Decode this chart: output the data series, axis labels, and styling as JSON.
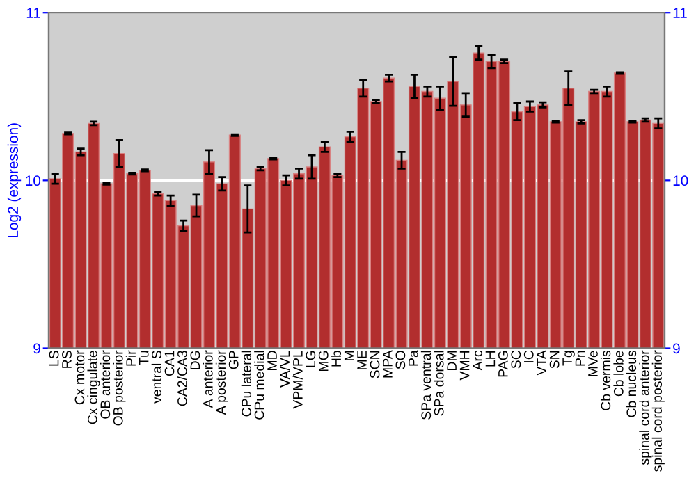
{
  "chart_data": {
    "type": "bar",
    "ylabel": "Log2 (expression)",
    "categories": [
      "LS",
      "RS",
      "Cx motor",
      "Cx cingulate",
      "OB anterior",
      "OB posterior",
      "Pir",
      "Tu",
      "ventral S",
      "CA1",
      "CA2/CA3",
      "DG",
      "A anterior",
      "A posterior",
      "GP",
      "CPu lateral",
      "CPu medial",
      "MD",
      "VA/VL",
      "VPM/VPL",
      "LG",
      "MG",
      "Hb",
      "M",
      "ME",
      "SCN",
      "MPA",
      "SO",
      "Pa",
      "SPa ventral",
      "SPa dorsal",
      "DM",
      "VMH",
      "Arc",
      "LH",
      "PAG",
      "SC",
      "IC",
      "VTA",
      "SN",
      "Tg",
      "Pn",
      "MVe",
      "Cb vermis",
      "Cb lobe",
      "Cb nucleus",
      "spinal cord anterior",
      "spinal cord posterior"
    ],
    "series": [
      {
        "color": "#b22e2e",
        "values": [
          10.01,
          10.28,
          10.17,
          10.34,
          9.98,
          10.16,
          10.04,
          10.06,
          9.92,
          9.88,
          9.73,
          9.85,
          10.11,
          9.98,
          10.27,
          9.83,
          10.07,
          10.13,
          10.0,
          10.04,
          10.08,
          10.2,
          10.03,
          10.26,
          10.55,
          10.47,
          10.61,
          10.12,
          10.56,
          10.53,
          10.49,
          10.59,
          10.45,
          10.76,
          10.71,
          10.71,
          10.41,
          10.44,
          10.45,
          10.35,
          10.55,
          10.35,
          10.53,
          10.53,
          10.64,
          10.35,
          10.36,
          10.34
        ],
        "errors": [
          0.03,
          0.005,
          0.02,
          0.01,
          0.005,
          0.08,
          0.005,
          0.005,
          0.01,
          0.03,
          0.03,
          0.065,
          0.07,
          0.04,
          0.005,
          0.14,
          0.01,
          0.005,
          0.03,
          0.03,
          0.07,
          0.03,
          0.01,
          0.03,
          0.05,
          0.01,
          0.02,
          0.05,
          0.07,
          0.03,
          0.07,
          0.145,
          0.07,
          0.04,
          0.04,
          0.01,
          0.05,
          0.03,
          0.015,
          0.005,
          0.1,
          0.01,
          0.01,
          0.03,
          0.005,
          0.005,
          0.01,
          0.03
        ]
      }
    ],
    "ylim": [
      9,
      11
    ],
    "yticks": [
      9,
      10,
      11
    ],
    "y2lim": [
      9,
      11
    ],
    "y2ticks": [
      9,
      10,
      11
    ],
    "grid": "y"
  }
}
